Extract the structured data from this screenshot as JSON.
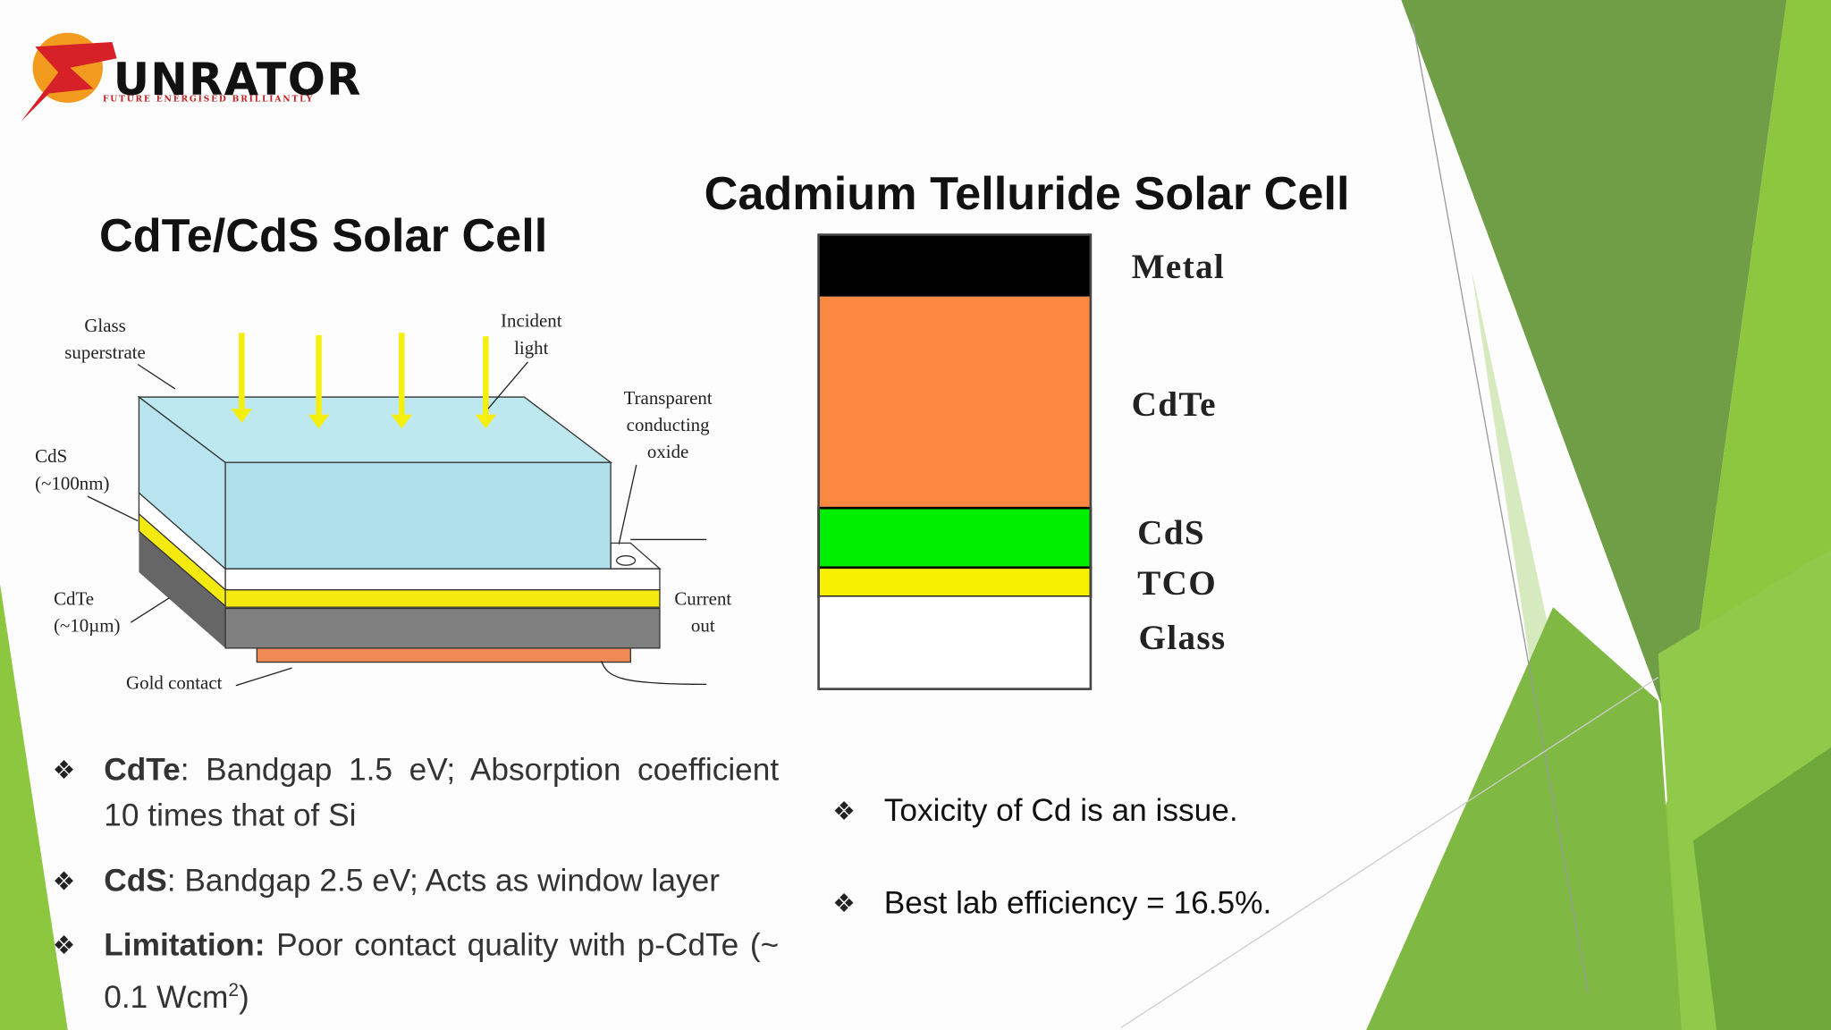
{
  "logo": {
    "name": "UNRATOR",
    "tagline": "FUTURE ENERGISED BRILLIANTLY"
  },
  "left": {
    "title": "CdTe/CdS Solar Cell",
    "labels": {
      "glass": "Glass superstrate",
      "light": "Incident light",
      "tco": "Transparent conducting oxide",
      "cds": "CdS (~100nm)",
      "cdte": "CdTe (~10µm)",
      "current": "Current out",
      "gold": "Gold contact"
    },
    "bullets": [
      {
        "bold": "CdTe",
        "text": ": Bandgap 1.5 eV;  Absorption coefficient 10 times that of Si"
      },
      {
        "bold": "CdS",
        "text": ": Bandgap 2.5 eV;  Acts as window layer"
      },
      {
        "bold": "Limitation:",
        "text": " Poor contact quality with p-CdTe  (~ 0.1 Wcm",
        "sup": "2",
        "tail": ")"
      }
    ]
  },
  "right": {
    "title": "Cadmium Telluride Solar Cell",
    "layers": [
      "Metal",
      "CdTe",
      "CdS",
      "TCO",
      "Glass"
    ],
    "bullets": [
      "Toxicity of Cd is an issue.",
      "Best lab efficiency = 16.5%."
    ]
  }
}
